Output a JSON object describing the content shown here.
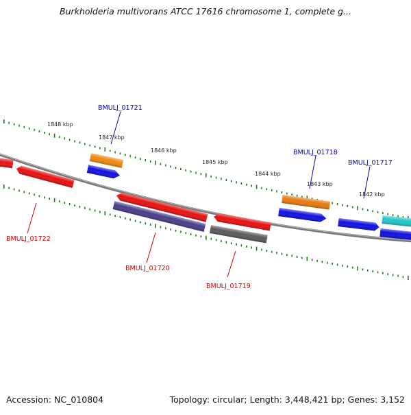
{
  "title": "Burkholderia multivorans ATCC 17616 chromosome 1, complete g...",
  "footer": {
    "accession": "Accession: NC_010804",
    "summary": "Topology: circular; Length: 3,448,421 bp; Genes: 3,152"
  },
  "colors": {
    "backbone": "#7a7a7a",
    "tick": "#1a7a1a",
    "label_forward": "#0000aa",
    "label_reverse": "#cc0000"
  },
  "tick_labels": [
    "1848 kbp",
    "1847 kbp",
    "1846 kbp",
    "1845 kbp",
    "1844 kbp",
    "1843 kbp",
    "1842 kbp"
  ],
  "genes": [
    {
      "id": "g01722",
      "label": "",
      "color": "#e81010"
    },
    {
      "id": "g01722b",
      "label": "",
      "color": "#e81010"
    },
    {
      "id": "g01721a",
      "label": "",
      "color": "#f08a10"
    },
    {
      "id": "g01721b",
      "label": "",
      "color": "#1010e0"
    },
    {
      "id": "g01720a",
      "label": "",
      "color": "#e81010"
    },
    {
      "id": "g01720b",
      "label": "",
      "color": "#4a3d8a"
    },
    {
      "id": "g01719a",
      "label": "",
      "color": "#e81010"
    },
    {
      "id": "g01719b",
      "label": "",
      "color": "#5a5a5a"
    },
    {
      "id": "g01718a",
      "label": "",
      "color": "#e87a10"
    },
    {
      "id": "g01718b",
      "label": "",
      "color": "#1010e0"
    },
    {
      "id": "g01717a",
      "label": "",
      "color": "#1010e0"
    },
    {
      "id": "g01716a",
      "label": "",
      "color": "#20c8c8"
    },
    {
      "id": "g01716b",
      "label": "",
      "color": "#1010e0"
    }
  ],
  "gene_labels": {
    "bmulj_01721": "BMULJ_01721",
    "bmulj_01718": "BMULJ_01718",
    "bmulj_01717": "BMULJ_01717",
    "bmulj_01722": "BMULJ_01722",
    "bmulj_01720": "BMULJ_01720",
    "bmulj_01719": "BMULJ_01719"
  }
}
